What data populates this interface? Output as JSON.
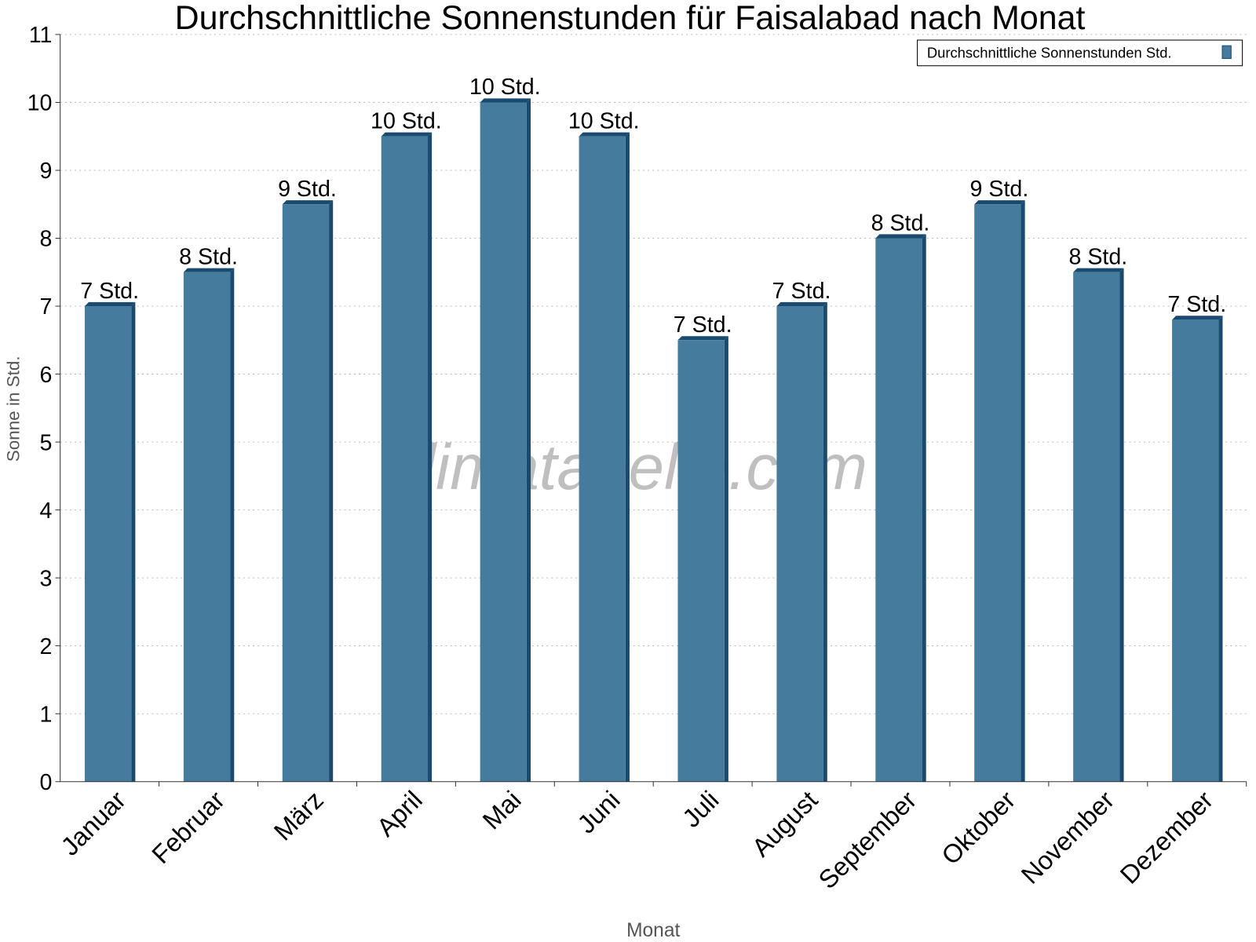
{
  "chart_data": {
    "type": "bar",
    "title": "Durchschnittliche Sonnenstunden für Faisalabad nach Monat",
    "xlabel": "Monat",
    "ylabel": "Sonne in Std.",
    "ylim": [
      0,
      11
    ],
    "yticks": [
      "0",
      "1",
      "2",
      "3",
      "4",
      "5",
      "6",
      "7",
      "8",
      "9",
      "10",
      "11"
    ],
    "grid": true,
    "legend_position": "top-right",
    "categories": [
      "Januar",
      "Februar",
      "März",
      "April",
      "Mai",
      "Juni",
      "Juli",
      "August",
      "September",
      "Oktober",
      "November",
      "Dezember"
    ],
    "series": [
      {
        "name": "Durchschnittliche Sonnenstunden Std.",
        "values": [
          7.0,
          7.5,
          8.5,
          9.5,
          10.0,
          9.5,
          6.5,
          7.0,
          8.0,
          8.5,
          7.5,
          6.8
        ],
        "data_labels": [
          "7 Std.",
          "8 Std.",
          "9 Std.",
          "10 Std.",
          "10 Std.",
          "10 Std.",
          "7 Std.",
          "7 Std.",
          "8 Std.",
          "9 Std.",
          "8 Std.",
          "7 Std."
        ],
        "color": "#457b9d",
        "side_color": "#1a4a6e"
      }
    ],
    "watermark": "klimatabelle.com"
  }
}
